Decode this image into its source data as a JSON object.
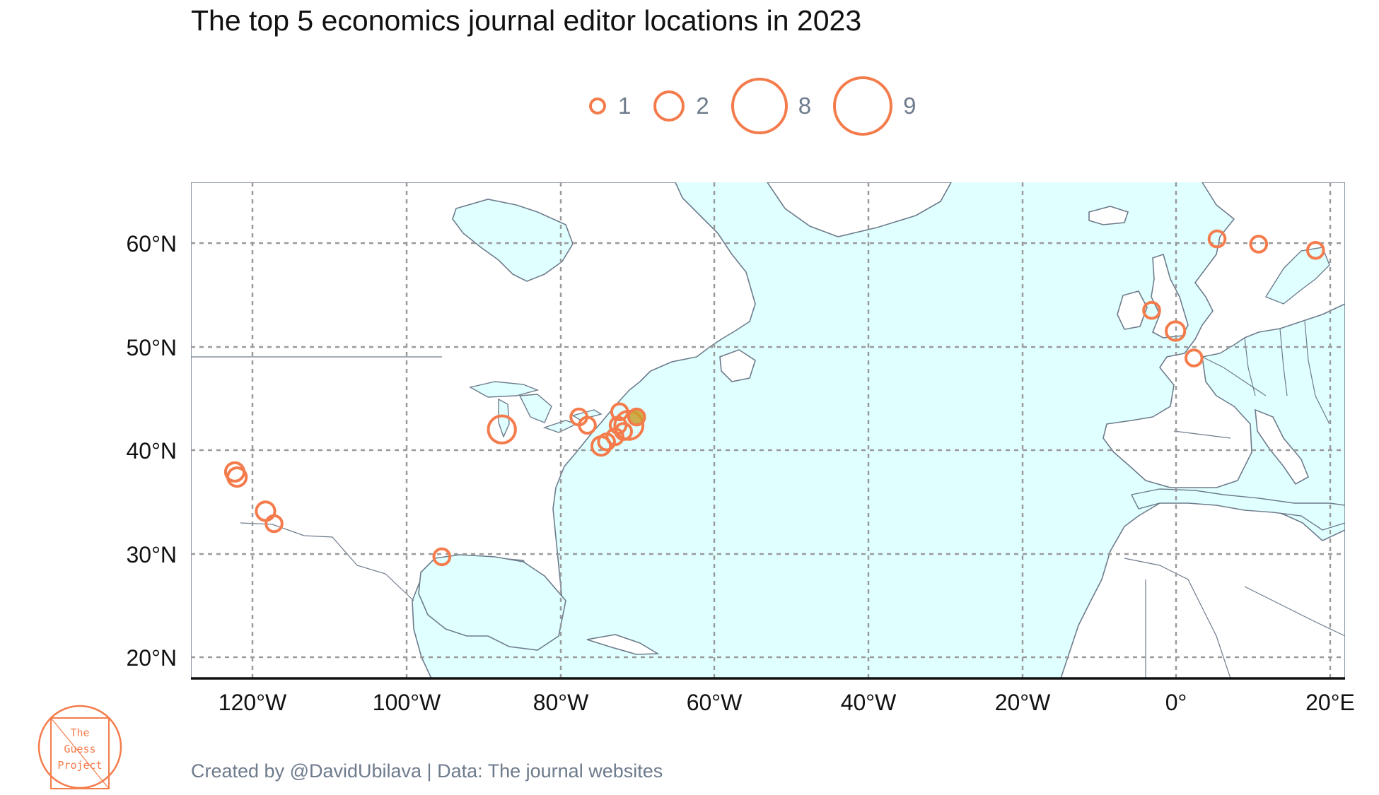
{
  "title": "The top 5 economics journal editor locations in 2023",
  "legend": {
    "items": [
      {
        "label": "1",
        "value": 1
      },
      {
        "label": "2",
        "value": 2
      },
      {
        "label": "8",
        "value": 8
      },
      {
        "label": "9",
        "value": 9
      }
    ]
  },
  "axes": {
    "y_ticks": [
      "60°N",
      "50°N",
      "40°N",
      "30°N",
      "20°N"
    ],
    "x_ticks": [
      "120°W",
      "100°W",
      "80°W",
      "60°W",
      "40°W",
      "20°W",
      "0°",
      "20°E"
    ]
  },
  "caption": "Created by @DavidUbilava | Data: The journal websites",
  "logo": {
    "line1": "The",
    "line2": "Guess",
    "line3": "Project"
  },
  "colors": {
    "marker": "#f47c4c",
    "highlight_fill": "#c9a02d",
    "ocean": "#e0ffff",
    "land": "#ffffff",
    "border": "#6e7b8c",
    "grid": "#9a9a9a"
  },
  "chart_data": {
    "type": "scatter",
    "title": "The top 5 economics journal editor locations in 2023",
    "xlim": [
      -128,
      22
    ],
    "ylim": [
      18,
      66
    ],
    "x_ticks": [
      -120,
      -100,
      -80,
      -60,
      -40,
      -20,
      0,
      20
    ],
    "y_ticks": [
      20,
      30,
      40,
      50,
      60
    ],
    "grid": true,
    "legend_position": "top",
    "size_legend": [
      1,
      2,
      8,
      9
    ],
    "points": [
      {
        "lon": -122.3,
        "lat": 37.9,
        "n": 2
      },
      {
        "lon": -122.0,
        "lat": 37.4,
        "n": 2
      },
      {
        "lon": -118.3,
        "lat": 34.1,
        "n": 2
      },
      {
        "lon": -117.2,
        "lat": 32.9,
        "n": 1
      },
      {
        "lon": -95.4,
        "lat": 29.7,
        "n": 1
      },
      {
        "lon": -87.6,
        "lat": 42.0,
        "n": 8
      },
      {
        "lon": -77.6,
        "lat": 43.2,
        "n": 1
      },
      {
        "lon": -76.5,
        "lat": 42.4,
        "n": 1
      },
      {
        "lon": -74.7,
        "lat": 40.4,
        "n": 2
      },
      {
        "lon": -74.0,
        "lat": 40.8,
        "n": 1
      },
      {
        "lon": -72.9,
        "lat": 41.3,
        "n": 1
      },
      {
        "lon": -72.5,
        "lat": 42.4,
        "n": 1
      },
      {
        "lon": -72.3,
        "lat": 43.7,
        "n": 1
      },
      {
        "lon": -71.8,
        "lat": 41.8,
        "n": 1
      },
      {
        "lon": -71.1,
        "lat": 42.4,
        "n": 9
      },
      {
        "lon": -70.1,
        "lat": 43.2,
        "n": 1,
        "highlight": true
      },
      {
        "lon": -3.2,
        "lat": 53.5,
        "n": 1
      },
      {
        "lon": -0.1,
        "lat": 51.5,
        "n": 2
      },
      {
        "lon": 2.3,
        "lat": 48.9,
        "n": 1
      },
      {
        "lon": 5.3,
        "lat": 60.4,
        "n": 1
      },
      {
        "lon": 10.7,
        "lat": 59.9,
        "n": 1
      },
      {
        "lon": 18.1,
        "lat": 59.3,
        "n": 1
      }
    ]
  }
}
